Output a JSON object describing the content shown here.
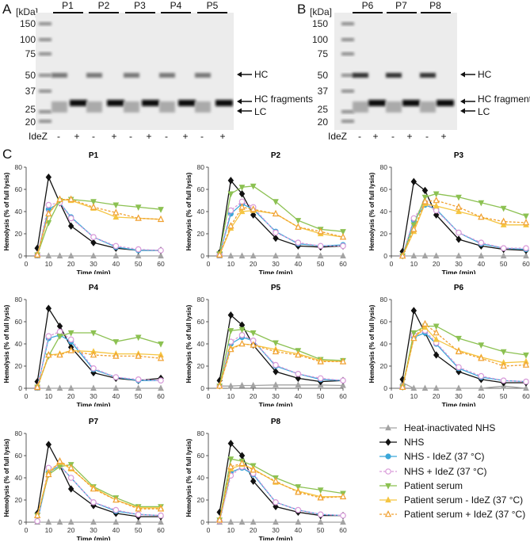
{
  "panels": {
    "a": "A",
    "b": "B",
    "c": "C"
  },
  "gel_a": {
    "unit": "[kDa]",
    "ladder": [
      "150",
      "100",
      "75",
      "50",
      "37",
      "25",
      "20"
    ],
    "lanes": [
      "P1",
      "P2",
      "P3",
      "P4",
      "P5"
    ],
    "idez_label": "IdeZ",
    "idez": [
      "-",
      "+",
      "-",
      "+",
      "-",
      "+",
      "-",
      "+",
      "-",
      "+"
    ],
    "arrows": {
      "hc": "HC",
      "hc_frag": "HC fragments",
      "lc": "LC"
    }
  },
  "gel_b": {
    "unit": "[kDa]",
    "ladder": [
      "150",
      "100",
      "75",
      "50",
      "37",
      "25",
      "20"
    ],
    "lanes": [
      "P6",
      "P7",
      "P8"
    ],
    "idez_label": "IdeZ",
    "idez": [
      "-",
      "+",
      "-",
      "+",
      "-",
      "+"
    ],
    "arrows": {
      "hc": "HC",
      "hc_frag": "HC fragments",
      "lc": "LC"
    }
  },
  "legend": [
    {
      "name": "Heat-inactivated NHS",
      "color": "#a3a3a3",
      "marker": "triangle-up",
      "dashed": false,
      "open": false
    },
    {
      "name": "NHS",
      "color": "#111111",
      "marker": "diamond",
      "dashed": false,
      "open": false
    },
    {
      "name": "NHS - IdeZ (37 °C)",
      "color": "#3ba7d9",
      "marker": "circle",
      "dashed": false,
      "open": false
    },
    {
      "name": "NHS + IdeZ (37 °C)",
      "color": "#d99ad9",
      "marker": "circle",
      "dashed": true,
      "open": true
    },
    {
      "name": "Patient serum",
      "color": "#8cc152",
      "marker": "triangle-down",
      "dashed": false,
      "open": false
    },
    {
      "name": "Patient serum - IdeZ (37 °C)",
      "color": "#f5c542",
      "marker": "triangle-up",
      "dashed": false,
      "open": false
    },
    {
      "name": "Patient serum + IdeZ (37 °C)",
      "color": "#f0a030",
      "marker": "triangle-up",
      "dashed": true,
      "open": true
    }
  ],
  "chart_data": [
    {
      "type": "line",
      "title": "P1",
      "xlabel": "Time (min)",
      "ylabel": "Hemolysis (% of full lysis)",
      "xlim": [
        0,
        60
      ],
      "ylim": [
        0,
        80
      ],
      "xticks": [
        0,
        10,
        20,
        30,
        40,
        50,
        60
      ],
      "yticks": [
        0,
        20,
        40,
        60,
        80
      ],
      "x": [
        5,
        10,
        15,
        20,
        30,
        40,
        50,
        60
      ],
      "series": [
        [
          0,
          0,
          0,
          0,
          0,
          0,
          0,
          0
        ],
        [
          7,
          71,
          48,
          27,
          12,
          7,
          5,
          5
        ],
        [
          1,
          42,
          48,
          35,
          17,
          8,
          5,
          5
        ],
        [
          1,
          46,
          48,
          34,
          17,
          9,
          6,
          5
        ],
        [
          1,
          30,
          50,
          51,
          49,
          46,
          44,
          42
        ],
        [
          1,
          38,
          51,
          50,
          43,
          35,
          34,
          33
        ],
        [
          1,
          38,
          51,
          51,
          44,
          39,
          34,
          33
        ]
      ]
    },
    {
      "type": "line",
      "title": "P2",
      "xlabel": "Time (min)",
      "ylabel": "Hemolysis (% of full lysis)",
      "xlim": [
        0,
        60
      ],
      "ylim": [
        0,
        80
      ],
      "xticks": [
        0,
        10,
        20,
        30,
        40,
        50,
        60
      ],
      "yticks": [
        0,
        20,
        40,
        60,
        80
      ],
      "x": [
        5,
        10,
        15,
        20,
        30,
        40,
        50,
        60
      ],
      "series": [
        [
          0,
          0,
          0,
          0,
          0,
          0,
          0,
          0
        ],
        [
          3,
          68,
          56,
          37,
          16,
          9,
          8,
          9
        ],
        [
          1,
          38,
          47,
          42,
          22,
          11,
          9,
          10
        ],
        [
          1,
          41,
          49,
          44,
          21,
          12,
          9,
          9
        ],
        [
          2,
          56,
          62,
          63,
          49,
          32,
          24,
          22
        ],
        [
          1,
          25,
          40,
          41,
          38,
          26,
          20,
          17
        ],
        [
          1,
          27,
          44,
          42,
          38,
          26,
          22,
          17
        ]
      ]
    },
    {
      "type": "line",
      "title": "P3",
      "xlabel": "Time (min)",
      "ylabel": "Hemolysis (% of full lysis)",
      "xlim": [
        0,
        60
      ],
      "ylim": [
        0,
        80
      ],
      "xticks": [
        0,
        10,
        20,
        30,
        40,
        50,
        60
      ],
      "yticks": [
        0,
        20,
        40,
        60,
        80
      ],
      "x": [
        5,
        10,
        15,
        20,
        30,
        40,
        50,
        60
      ],
      "series": [
        [
          0,
          0,
          0,
          0,
          0,
          0,
          0,
          0
        ],
        [
          4,
          67,
          59,
          37,
          15,
          9,
          6,
          5
        ],
        [
          0,
          32,
          46,
          42,
          21,
          11,
          7,
          6
        ],
        [
          0,
          34,
          48,
          41,
          21,
          12,
          7,
          7
        ],
        [
          0,
          28,
          53,
          56,
          53,
          48,
          43,
          36
        ],
        [
          0,
          22,
          47,
          45,
          40,
          35,
          28,
          28
        ],
        [
          0,
          24,
          49,
          50,
          44,
          35,
          31,
          30
        ]
      ]
    },
    {
      "type": "line",
      "title": "P4",
      "xlabel": "Time (min)",
      "ylabel": "Hemolysis (% of full lysis)",
      "xlim": [
        0,
        60
      ],
      "ylim": [
        0,
        80
      ],
      "xticks": [
        0,
        10,
        20,
        30,
        40,
        50,
        60
      ],
      "yticks": [
        0,
        20,
        40,
        60,
        80
      ],
      "x": [
        5,
        10,
        15,
        20,
        30,
        40,
        50,
        60
      ],
      "series": [
        [
          0,
          0,
          0,
          0,
          0,
          0,
          0,
          0
        ],
        [
          6,
          72,
          56,
          37,
          14,
          9,
          7,
          9
        ],
        [
          1,
          45,
          48,
          42,
          17,
          10,
          7,
          7
        ],
        [
          1,
          47,
          51,
          44,
          18,
          10,
          8,
          7
        ],
        [
          1,
          29,
          47,
          50,
          50,
          42,
          46,
          40
        ],
        [
          1,
          30,
          31,
          34,
          33,
          31,
          31,
          30
        ],
        [
          1,
          30,
          30,
          34,
          30,
          29,
          29,
          27
        ]
      ]
    },
    {
      "type": "line",
      "title": "P5",
      "xlabel": "Time (min)",
      "ylabel": "Hemolysis (% of full lysis)",
      "xlim": [
        0,
        60
      ],
      "ylim": [
        0,
        80
      ],
      "xticks": [
        0,
        10,
        20,
        30,
        40,
        50,
        60
      ],
      "yticks": [
        0,
        20,
        40,
        60,
        80
      ],
      "x": [
        5,
        10,
        15,
        20,
        30,
        40,
        50,
        60
      ],
      "series": [
        [
          2,
          2,
          2.5,
          2.5,
          3,
          3,
          3,
          2.5
        ],
        [
          7,
          66,
          57,
          39,
          15,
          9,
          6,
          7
        ],
        [
          2,
          40,
          46,
          43,
          20,
          13,
          8,
          7
        ],
        [
          2,
          42,
          48,
          43,
          21,
          13,
          9,
          7
        ],
        [
          2,
          52,
          53,
          50,
          41,
          34,
          26,
          25
        ],
        [
          2,
          36,
          40,
          39,
          35,
          31,
          25,
          24
        ],
        [
          2,
          35,
          40,
          39,
          33,
          30,
          24,
          24
        ]
      ]
    },
    {
      "type": "line",
      "title": "P6",
      "xlabel": "Time (min)",
      "ylabel": "Hemolysis (% of full lysis)",
      "xlim": [
        0,
        60
      ],
      "ylim": [
        0,
        80
      ],
      "xticks": [
        0,
        10,
        20,
        30,
        40,
        50,
        60
      ],
      "yticks": [
        0,
        20,
        40,
        60,
        80
      ],
      "x": [
        5,
        10,
        15,
        20,
        30,
        40,
        50,
        60
      ],
      "series": [
        [
          5,
          0,
          0,
          0,
          0,
          0,
          2,
          0
        ],
        [
          8,
          70,
          50,
          30,
          15,
          8,
          5,
          5
        ],
        [
          1,
          46,
          50,
          40,
          18,
          10,
          7,
          6
        ],
        [
          1,
          48,
          52,
          41,
          19,
          11,
          7,
          6
        ],
        [
          1,
          50,
          56,
          56,
          45,
          39,
          33,
          30
        ],
        [
          1,
          45,
          55,
          44,
          34,
          28,
          23,
          24
        ],
        [
          1,
          45,
          58,
          50,
          33,
          27,
          20,
          21
        ]
      ]
    },
    {
      "type": "line",
      "title": "P7",
      "xlabel": "Time (min)",
      "ylabel": "Hemolysis (% of full lysis)",
      "xlim": [
        0,
        60
      ],
      "ylim": [
        0,
        80
      ],
      "xticks": [
        0,
        10,
        20,
        30,
        40,
        50,
        60
      ],
      "yticks": [
        0,
        20,
        40,
        60,
        80
      ],
      "x": [
        5,
        10,
        15,
        20,
        30,
        40,
        50,
        60
      ],
      "series": [
        [
          0,
          0,
          0,
          0,
          0,
          0,
          0,
          0
        ],
        [
          8,
          70,
          51,
          30,
          15,
          8,
          5,
          5
        ],
        [
          1,
          45,
          51,
          40,
          18,
          10,
          7,
          6
        ],
        [
          1,
          49,
          51,
          40,
          18,
          11,
          7,
          6
        ],
        [
          6,
          43,
          50,
          52,
          32,
          22,
          14,
          14
        ],
        [
          6,
          45,
          54,
          48,
          31,
          20,
          13,
          13
        ],
        [
          6,
          43,
          55,
          49,
          30,
          20,
          12,
          12
        ]
      ]
    },
    {
      "type": "line",
      "title": "P8",
      "xlabel": "Time (min)",
      "ylabel": "Hemolysis (% of full lysis)",
      "xlim": [
        0,
        60
      ],
      "ylim": [
        0,
        80
      ],
      "xticks": [
        0,
        10,
        20,
        30,
        40,
        50,
        60
      ],
      "yticks": [
        0,
        20,
        40,
        60,
        80
      ],
      "x": [
        5,
        10,
        15,
        20,
        30,
        40,
        50,
        60
      ],
      "series": [
        [
          0,
          0,
          0,
          0,
          0,
          0,
          0,
          0
        ],
        [
          9,
          71,
          60,
          37,
          14,
          9,
          6,
          6
        ],
        [
          1,
          45,
          49,
          43,
          18,
          11,
          7,
          6
        ],
        [
          1,
          42,
          50,
          44,
          18,
          11,
          7,
          6
        ],
        [
          2,
          57,
          55,
          51,
          40,
          32,
          29,
          26
        ],
        [
          2,
          48,
          52,
          48,
          36,
          28,
          23,
          23
        ],
        [
          2,
          50,
          53,
          47,
          37,
          27,
          22,
          23
        ]
      ]
    }
  ]
}
